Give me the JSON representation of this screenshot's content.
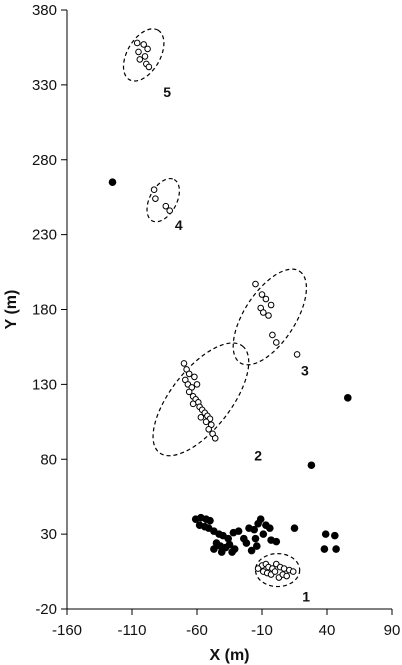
{
  "chart_data": {
    "type": "scatter",
    "xlabel": "X (m)",
    "ylabel": "Y (m)",
    "xlim": [
      -160,
      90
    ],
    "ylim": [
      -20,
      380
    ],
    "xticks": [
      "-160",
      "-110",
      "-60",
      "-10",
      "40",
      "90"
    ],
    "yticks": [
      "-20",
      "30",
      "80",
      "130",
      "180",
      "230",
      "280",
      "330",
      "380"
    ],
    "grid": false,
    "legend": "none",
    "colors": {
      "filled": "#000000",
      "open": "#ffffff",
      "stroke": "#000000"
    },
    "series": [
      {
        "marker": "filled",
        "points": [
          [
            -125,
            265
          ],
          [
            56,
            121
          ],
          [
            28,
            76
          ],
          [
            -61,
            40
          ],
          [
            -57,
            41
          ],
          [
            -53,
            40
          ],
          [
            -50,
            39
          ],
          [
            -58,
            36
          ],
          [
            -54,
            35
          ],
          [
            -51,
            34
          ],
          [
            -47,
            32
          ],
          [
            -43,
            30
          ],
          [
            -40,
            29
          ],
          [
            -36,
            27
          ],
          [
            -32,
            31
          ],
          [
            -28,
            32
          ],
          [
            -24,
            27
          ],
          [
            -22,
            24
          ],
          [
            -45,
            24
          ],
          [
            -42,
            22
          ],
          [
            -38,
            21
          ],
          [
            -35,
            23
          ],
          [
            -31,
            20
          ],
          [
            -47,
            20
          ],
          [
            -41,
            18
          ],
          [
            -33,
            18
          ],
          [
            -20,
            34
          ],
          [
            -16,
            33
          ],
          [
            -13,
            37
          ],
          [
            -11,
            40
          ],
          [
            -7,
            36
          ],
          [
            -4,
            34
          ],
          [
            -9,
            30
          ],
          [
            -15,
            27
          ],
          [
            -3,
            26
          ],
          [
            1,
            25
          ],
          [
            15,
            34
          ],
          [
            39,
            30
          ],
          [
            46,
            29
          ],
          [
            38,
            20
          ],
          [
            47,
            20
          ],
          [
            -14,
            22
          ],
          [
            -18,
            19
          ]
        ]
      },
      {
        "marker": "open",
        "points": [
          [
            -106,
            358
          ],
          [
            -101,
            357
          ],
          [
            -98,
            354
          ],
          [
            -105,
            352
          ],
          [
            -100,
            349
          ],
          [
            -104,
            347
          ],
          [
            -99,
            344
          ],
          [
            -97,
            342
          ],
          [
            -93,
            260
          ],
          [
            -92,
            254
          ],
          [
            -84,
            249
          ],
          [
            -81,
            246
          ],
          [
            -15,
            197
          ],
          [
            -10,
            190
          ],
          [
            -7,
            187
          ],
          [
            -3,
            183
          ],
          [
            -11,
            181
          ],
          [
            -9,
            178
          ],
          [
            -5,
            176
          ],
          [
            -2,
            163
          ],
          [
            1,
            158
          ],
          [
            17,
            150
          ],
          [
            -70,
            144
          ],
          [
            -68,
            140
          ],
          [
            -66,
            137
          ],
          [
            -62,
            135
          ],
          [
            -69,
            133
          ],
          [
            -67,
            130
          ],
          [
            -64,
            128
          ],
          [
            -66,
            125
          ],
          [
            -63,
            122
          ],
          [
            -61,
            120
          ],
          [
            -59,
            118
          ],
          [
            -63,
            117
          ],
          [
            -58,
            115
          ],
          [
            -56,
            113
          ],
          [
            -54,
            111
          ],
          [
            -52,
            109
          ],
          [
            -50,
            107
          ],
          [
            -53,
            105
          ],
          [
            -49,
            103
          ],
          [
            -51,
            100
          ],
          [
            -48,
            97
          ],
          [
            -46,
            94
          ],
          [
            -60,
            130
          ],
          [
            -57,
            108
          ],
          [
            -10,
            9
          ],
          [
            -7,
            10
          ],
          [
            -5,
            8
          ],
          [
            -2,
            7
          ],
          [
            1,
            10
          ],
          [
            4,
            8
          ],
          [
            7,
            7
          ],
          [
            11,
            6
          ],
          [
            14,
            5
          ],
          [
            -9,
            5
          ],
          [
            -6,
            4
          ],
          [
            -3,
            3
          ],
          [
            0,
            5
          ],
          [
            3,
            1
          ],
          [
            6,
            3
          ],
          [
            9,
            2
          ],
          [
            -13,
            7
          ]
        ]
      }
    ],
    "ellipses": [
      {
        "label": "1",
        "center": [
          2,
          6
        ],
        "rx": 17,
        "ry": 11,
        "angle": 0,
        "label_pos": [
          24,
          -15
        ]
      },
      {
        "label": "2",
        "center": [
          -57,
          120
        ],
        "rx": 52,
        "ry": 20,
        "angle": -52,
        "label_pos": [
          -13,
          79
        ]
      },
      {
        "label": "3",
        "center": [
          -4,
          175
        ],
        "rx": 42,
        "ry": 17,
        "angle": -57,
        "label_pos": [
          23,
          136
        ]
      },
      {
        "label": "4",
        "center": [
          -86,
          253
        ],
        "rx": 18,
        "ry": 9,
        "angle": -62,
        "label_pos": [
          -74,
          233
        ]
      },
      {
        "label": "5",
        "center": [
          -101,
          350
        ],
        "rx": 22,
        "ry": 11,
        "angle": -60,
        "label_pos": [
          -83,
          322
        ]
      }
    ]
  }
}
